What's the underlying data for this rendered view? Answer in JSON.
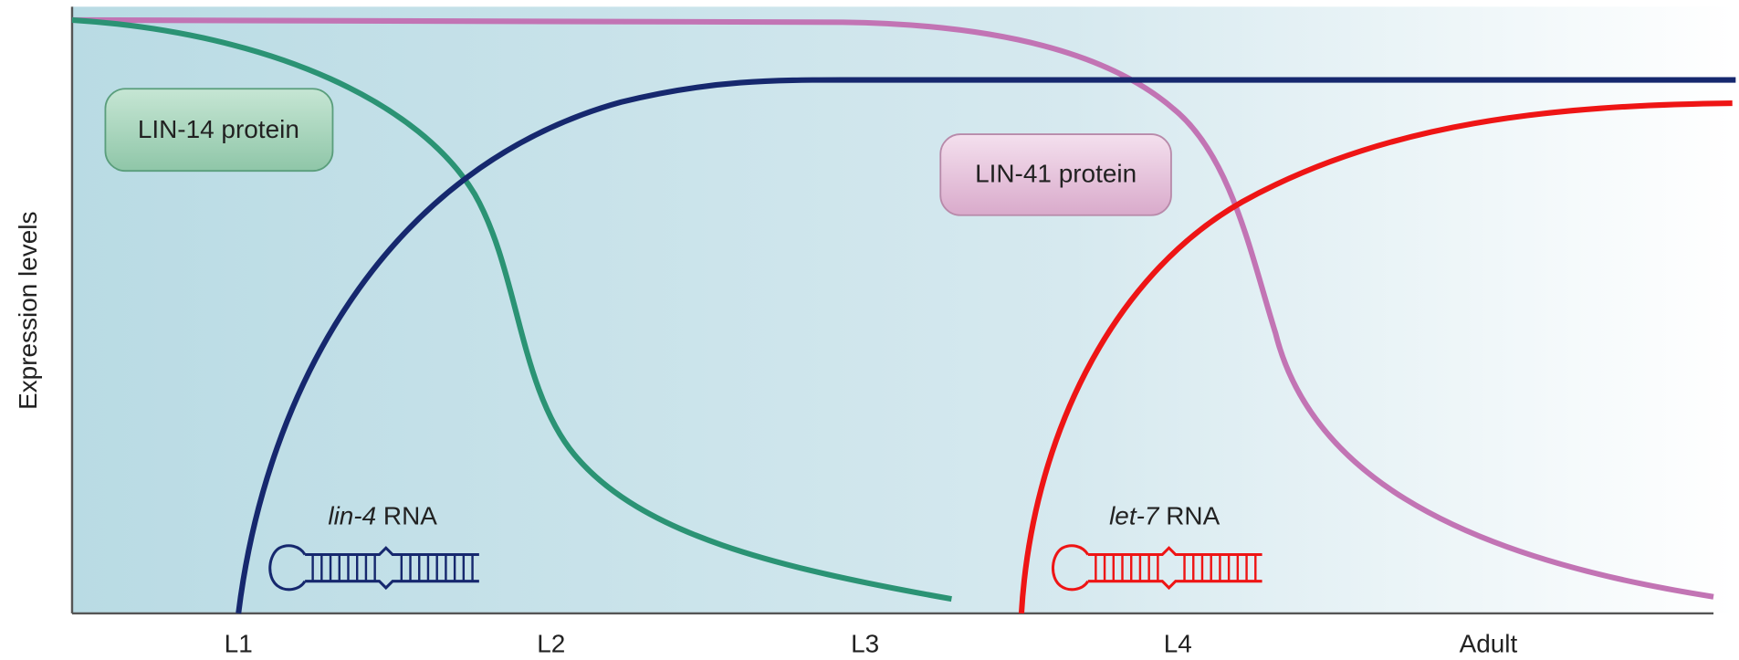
{
  "y_axis_label": "Expression levels",
  "stages": [
    "L1",
    "L2",
    "L3",
    "L4",
    "Adult"
  ],
  "labels": {
    "lin14": "LIN-14 protein",
    "lin41": "LIN-41 protein",
    "lin4": {
      "gene": "lin-4",
      "suffix": "RNA"
    },
    "let7": {
      "gene": "let-7",
      "suffix": "RNA"
    }
  }
}
